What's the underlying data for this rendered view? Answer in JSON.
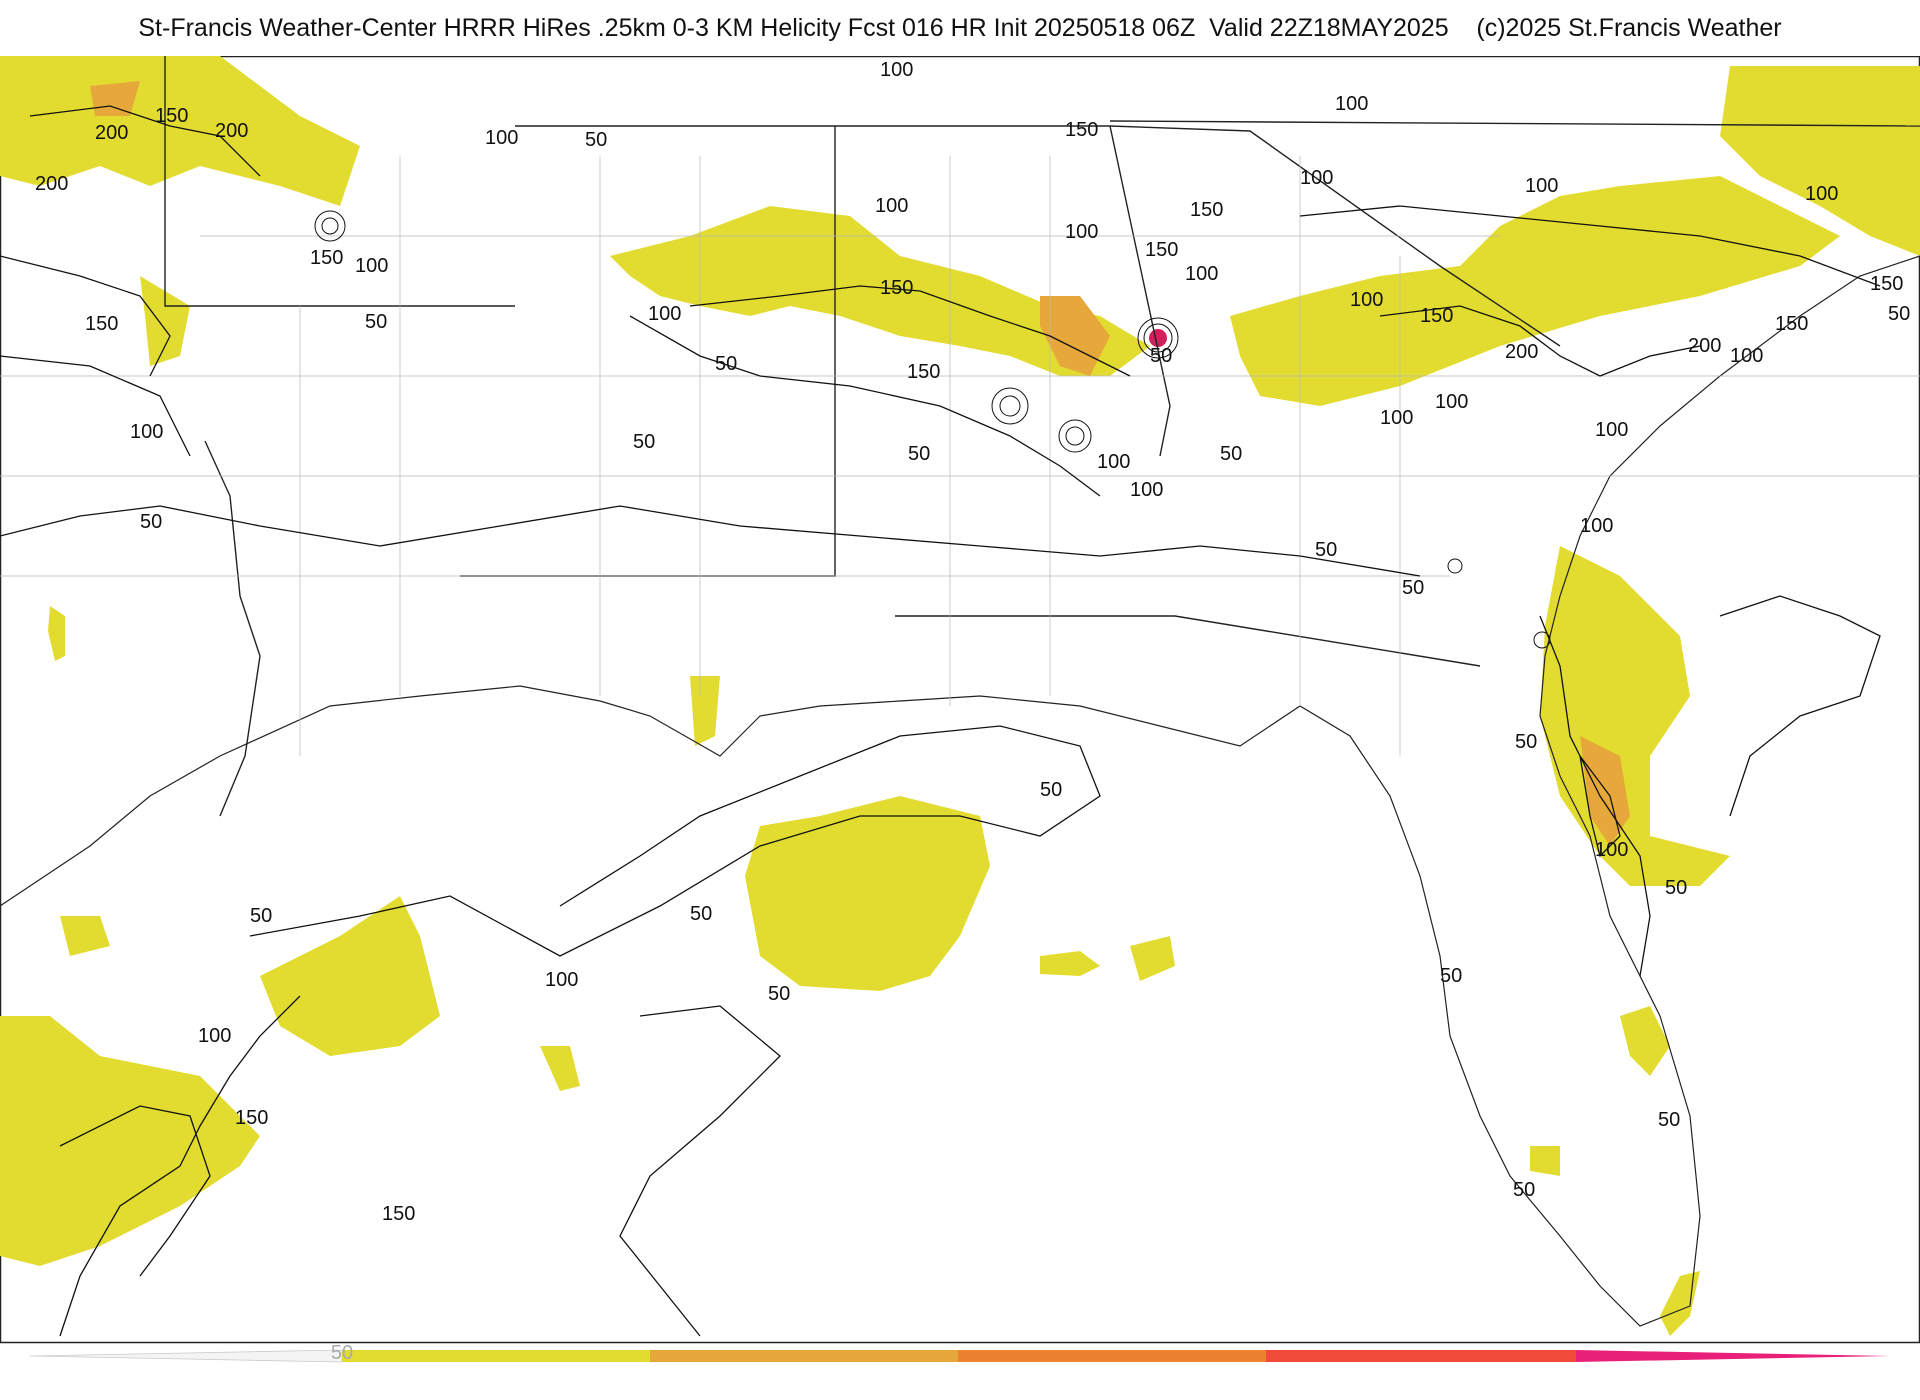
{
  "header": {
    "title": "St-Francis Weather-Center HRRR HiRes .25km 0-3 KM Helicity Fcst 016 HR Init 20250518 06Z  Valid 22Z18MAY2025    (c)2025 St.Francis Weather"
  },
  "legend": {
    "tick_label": "50",
    "colors": [
      "#e3dc30",
      "#e6a83a",
      "#ec8230",
      "#f04a3a",
      "#e8207a"
    ]
  },
  "contour_labels": [
    "50",
    "100",
    "150",
    "200"
  ],
  "colors": {
    "fill_low": "#e3dc30",
    "fill_mid": "#e6a83a",
    "fill_high": "#ec8230",
    "fill_peak": "#d0205a",
    "contour": "#111111",
    "county_lines": "#b8b8b8"
  }
}
